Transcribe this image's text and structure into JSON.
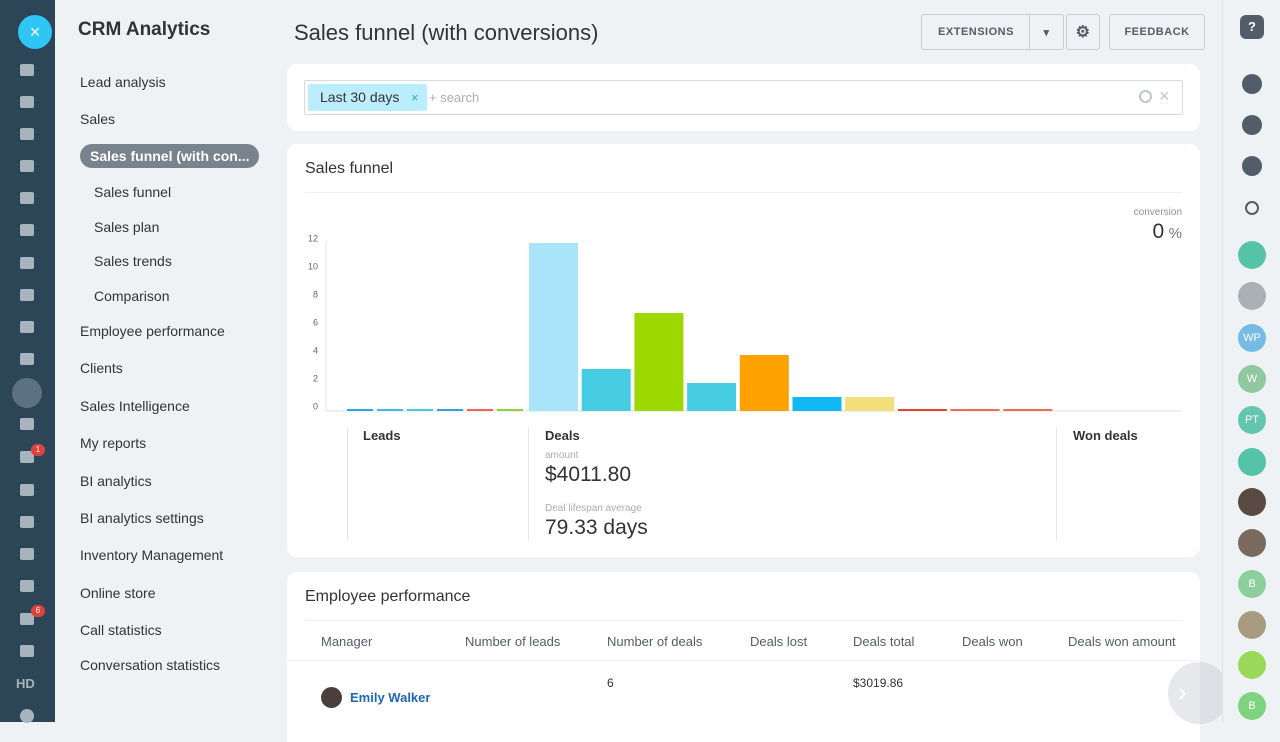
{
  "sidebar": {
    "title": "CRM Analytics",
    "menu": [
      "Lead analysis",
      "Sales",
      "Sales funnel (with con...",
      "Sales funnel",
      "Sales plan",
      "Sales trends",
      "Comparison",
      "Employee performance",
      "Clients",
      "Sales Intelligence",
      "My reports",
      "BI analytics",
      "BI analytics settings",
      "Inventory Management",
      "Online store",
      "Call statistics",
      "Conversation statistics"
    ]
  },
  "left_bar": {
    "badges": [
      "1",
      "6"
    ],
    "label": "HD"
  },
  "header": {
    "title": "Sales funnel (with conversions)",
    "buttons": [
      "EXTENSIONS",
      "FEEDBACK"
    ]
  },
  "filter": {
    "tag": "Last 30 days",
    "placeholder": "+ search"
  },
  "funnel": {
    "title": "Sales funnel",
    "conversion_label": "conversion",
    "conversion_value": "0",
    "conversion_unit": "%",
    "sections": [
      "Leads",
      "Deals",
      "Won deals"
    ],
    "amount_label": "amount",
    "amount": "$4011.80",
    "lifespan_label": "Deal lifespan average",
    "lifespan": "79.33 days"
  },
  "chart_data": {
    "type": "bar",
    "categories": [
      null,
      null,
      null,
      null,
      null,
      null,
      null,
      null,
      null,
      null,
      null,
      null,
      null,
      null,
      null,
      null
    ],
    "values": [
      0,
      0,
      0,
      0,
      0,
      0,
      12,
      3,
      7,
      2,
      4,
      1,
      1,
      0,
      0,
      0
    ],
    "colors": [
      "#2fa4e0",
      "#3fb8ea",
      "#4cc9d8",
      "#2fa4e0",
      "#f0614e",
      "#8fd23a",
      "#a9e5fa",
      "#47cde3",
      "#9dd800",
      "#47cde3",
      "#ffa200",
      "#12b8f3",
      "#f2de7a",
      "#e2452d",
      "#f06a57",
      "#f06a57"
    ],
    "ylim": [
      0,
      12
    ],
    "yticks": [
      0,
      2,
      4,
      6,
      8,
      10,
      12
    ]
  },
  "employee_performance": {
    "title": "Employee performance",
    "columns": [
      "Manager",
      "Number of leads",
      "Number of deals",
      "Deals lost",
      "Deals total",
      "Deals won",
      "Deals won amount"
    ],
    "rows": [
      {
        "manager": "Emily Walker",
        "number_of_deals": "6",
        "deals_total": "$3019.86"
      }
    ]
  },
  "right_bar": {
    "avatars": [
      "WP",
      "W",
      "PT",
      "B",
      "B"
    ]
  }
}
